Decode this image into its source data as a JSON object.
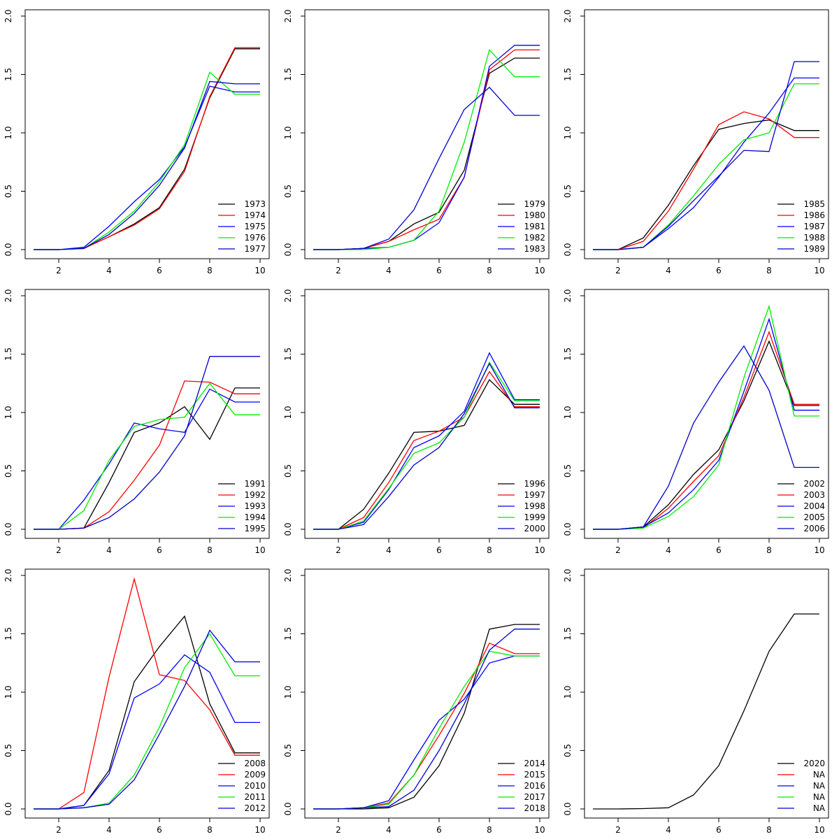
{
  "chart_data": [
    {
      "type": "line",
      "x": [
        1,
        2,
        3,
        4,
        5,
        6,
        7,
        8,
        9,
        10
      ],
      "ylim": [
        0,
        2.0
      ],
      "xlim": [
        1,
        10
      ],
      "x_ticks": [
        "2",
        "4",
        "6",
        "8",
        "10"
      ],
      "y_ticks": [
        "0.0",
        "0.5",
        "1.0",
        "1.5",
        "2.0"
      ],
      "legend_position": "bottom-right",
      "series": [
        {
          "name": "1973",
          "color": "#000000",
          "values": [
            0,
            0,
            0.01,
            0.11,
            0.22,
            0.36,
            0.69,
            1.3,
            1.72,
            1.72
          ]
        },
        {
          "name": "1974",
          "color": "#ff0000",
          "values": [
            0,
            0,
            0.01,
            0.11,
            0.21,
            0.35,
            0.67,
            1.31,
            1.73,
            1.73
          ]
        },
        {
          "name": "1975",
          "color": "#0000ff",
          "values": [
            0,
            0,
            0.02,
            0.2,
            0.41,
            0.6,
            0.88,
            1.4,
            1.35,
            1.35
          ]
        },
        {
          "name": "1976",
          "color": "#00ee00",
          "values": [
            0,
            0,
            0.01,
            0.15,
            0.33,
            0.58,
            0.9,
            1.52,
            1.33,
            1.33
          ]
        },
        {
          "name": "1977",
          "color": "#0000cd",
          "values": [
            0,
            0,
            0.01,
            0.13,
            0.31,
            0.55,
            0.87,
            1.44,
            1.42,
            1.42
          ]
        }
      ]
    },
    {
      "type": "line",
      "x": [
        1,
        2,
        3,
        4,
        5,
        6,
        7,
        8,
        9,
        10
      ],
      "ylim": [
        0,
        2.0
      ],
      "xlim": [
        1,
        10
      ],
      "x_ticks": [
        "2",
        "4",
        "6",
        "8",
        "10"
      ],
      "y_ticks": [
        "0.0",
        "0.5",
        "1.0",
        "1.5",
        "2.0"
      ],
      "legend_position": "bottom-right",
      "series": [
        {
          "name": "1979",
          "color": "#000000",
          "values": [
            0,
            0,
            0.01,
            0.07,
            0.22,
            0.32,
            0.68,
            1.51,
            1.64,
            1.64
          ]
        },
        {
          "name": "1980",
          "color": "#ff0000",
          "values": [
            0,
            0,
            0.01,
            0.07,
            0.17,
            0.26,
            0.62,
            1.54,
            1.71,
            1.71
          ]
        },
        {
          "name": "1981",
          "color": "#0000ff",
          "values": [
            0,
            0,
            0.01,
            0.02,
            0.08,
            0.23,
            0.62,
            1.57,
            1.75,
            1.75
          ]
        },
        {
          "name": "1982",
          "color": "#00ee00",
          "values": [
            0,
            0,
            0.0,
            0.02,
            0.08,
            0.33,
            0.92,
            1.71,
            1.48,
            1.48
          ]
        },
        {
          "name": "1983",
          "color": "#0000cd",
          "values": [
            0,
            0,
            0.01,
            0.09,
            0.34,
            0.78,
            1.2,
            1.39,
            1.15,
            1.15
          ]
        }
      ]
    },
    {
      "type": "line",
      "x": [
        1,
        2,
        3,
        4,
        5,
        6,
        7,
        8,
        9,
        10
      ],
      "ylim": [
        0,
        2.0
      ],
      "xlim": [
        1,
        10
      ],
      "x_ticks": [
        "2",
        "4",
        "6",
        "8",
        "10"
      ],
      "y_ticks": [
        "0.0",
        "0.5",
        "1.0",
        "1.5",
        "2.0"
      ],
      "legend_position": "bottom-right",
      "series": [
        {
          "name": "1985",
          "color": "#000000",
          "values": [
            0,
            0,
            0.1,
            0.38,
            0.72,
            1.03,
            1.08,
            1.11,
            1.02,
            1.02
          ]
        },
        {
          "name": "1986",
          "color": "#ff0000",
          "values": [
            0,
            0,
            0.07,
            0.33,
            0.69,
            1.07,
            1.18,
            1.12,
            0.96,
            0.96
          ]
        },
        {
          "name": "1987",
          "color": "#0000ff",
          "values": [
            0,
            0,
            0.02,
            0.18,
            0.36,
            0.62,
            0.92,
            1.17,
            1.47,
            1.47
          ]
        },
        {
          "name": "1988",
          "color": "#00ee00",
          "values": [
            0,
            0,
            0.02,
            0.21,
            0.46,
            0.73,
            0.94,
            1.0,
            1.42,
            1.42
          ]
        },
        {
          "name": "1989",
          "color": "#0000cd",
          "values": [
            0,
            0,
            0.02,
            0.2,
            0.42,
            0.63,
            0.85,
            0.84,
            1.61,
            1.61
          ]
        }
      ]
    },
    {
      "type": "line",
      "x": [
        1,
        2,
        3,
        4,
        5,
        6,
        7,
        8,
        9,
        10
      ],
      "ylim": [
        0,
        2.0
      ],
      "xlim": [
        1,
        10
      ],
      "x_ticks": [
        "2",
        "4",
        "6",
        "8",
        "10"
      ],
      "y_ticks": [
        "0.0",
        "0.5",
        "1.0",
        "1.5",
        "2.0"
      ],
      "legend_position": "bottom-right",
      "series": [
        {
          "name": "1991",
          "color": "#000000",
          "values": [
            0,
            0,
            0.01,
            0.4,
            0.83,
            0.91,
            1.05,
            0.77,
            1.21,
            1.21
          ]
        },
        {
          "name": "1992",
          "color": "#ff0000",
          "values": [
            0,
            0,
            0.01,
            0.15,
            0.42,
            0.72,
            1.27,
            1.26,
            1.16,
            1.16
          ]
        },
        {
          "name": "1993",
          "color": "#0000ff",
          "values": [
            0,
            0,
            0.25,
            0.56,
            0.91,
            0.86,
            0.83,
            1.2,
            1.09,
            1.09
          ]
        },
        {
          "name": "1994",
          "color": "#00ee00",
          "values": [
            0,
            0,
            0.16,
            0.59,
            0.88,
            0.94,
            0.96,
            1.25,
            0.98,
            0.98
          ]
        },
        {
          "name": "1995",
          "color": "#0000cd",
          "values": [
            0,
            0,
            0.01,
            0.1,
            0.26,
            0.49,
            0.8,
            1.48,
            1.48,
            1.48
          ]
        }
      ]
    },
    {
      "type": "line",
      "x": [
        1,
        2,
        3,
        4,
        5,
        6,
        7,
        8,
        9,
        10
      ],
      "ylim": [
        0,
        2.0
      ],
      "xlim": [
        1,
        10
      ],
      "x_ticks": [
        "2",
        "4",
        "6",
        "8",
        "10"
      ],
      "y_ticks": [
        "0.0",
        "0.5",
        "1.0",
        "1.5",
        "2.0"
      ],
      "legend_position": "bottom-right",
      "series": [
        {
          "name": "1996",
          "color": "#000000",
          "values": [
            0,
            0,
            0.17,
            0.48,
            0.83,
            0.84,
            0.89,
            1.28,
            1.07,
            1.07
          ]
        },
        {
          "name": "1997",
          "color": "#ff0000",
          "values": [
            0,
            0,
            0.1,
            0.4,
            0.76,
            0.84,
            0.96,
            1.35,
            1.05,
            1.05
          ]
        },
        {
          "name": "1998",
          "color": "#0000ff",
          "values": [
            0,
            0,
            0.06,
            0.34,
            0.7,
            0.8,
            1.01,
            1.51,
            1.11,
            1.11
          ]
        },
        {
          "name": "1999",
          "color": "#00ee00",
          "values": [
            0,
            0,
            0.07,
            0.35,
            0.65,
            0.74,
            0.96,
            1.43,
            1.1,
            1.1
          ]
        },
        {
          "name": "2000",
          "color": "#0000cd",
          "values": [
            0,
            0,
            0.04,
            0.28,
            0.55,
            0.7,
            0.99,
            1.42,
            1.04,
            1.04
          ]
        }
      ]
    },
    {
      "type": "line",
      "x": [
        1,
        2,
        3,
        4,
        5,
        6,
        7,
        8,
        9,
        10
      ],
      "ylim": [
        0,
        2.0
      ],
      "xlim": [
        1,
        10
      ],
      "x_ticks": [
        "2",
        "4",
        "6",
        "8",
        "10"
      ],
      "y_ticks": [
        "0.0",
        "0.5",
        "1.0",
        "1.5",
        "2.0"
      ],
      "legend_position": "bottom-right",
      "series": [
        {
          "name": "2002",
          "color": "#000000",
          "values": [
            0,
            0,
            0.02,
            0.21,
            0.47,
            0.68,
            1.1,
            1.61,
            1.06,
            1.06
          ]
        },
        {
          "name": "2003",
          "color": "#ff0000",
          "values": [
            0,
            0,
            0.01,
            0.18,
            0.41,
            0.63,
            1.13,
            1.69,
            1.07,
            1.07
          ]
        },
        {
          "name": "2004",
          "color": "#0000ff",
          "values": [
            0,
            0,
            0.02,
            0.14,
            0.34,
            0.59,
            1.18,
            1.8,
            1.02,
            1.02
          ]
        },
        {
          "name": "2005",
          "color": "#00ee00",
          "values": [
            0,
            0,
            0.01,
            0.11,
            0.28,
            0.55,
            1.3,
            1.91,
            0.97,
            0.97
          ]
        },
        {
          "name": "2006",
          "color": "#0000cd",
          "values": [
            0,
            0,
            0.02,
            0.37,
            0.91,
            1.26,
            1.57,
            1.19,
            0.53,
            0.53
          ]
        }
      ]
    },
    {
      "type": "line",
      "x": [
        1,
        2,
        3,
        4,
        5,
        6,
        7,
        8,
        9,
        10
      ],
      "ylim": [
        0,
        2.0
      ],
      "xlim": [
        1,
        10
      ],
      "x_ticks": [
        "2",
        "4",
        "6",
        "8",
        "10"
      ],
      "y_ticks": [
        "0.0",
        "0.5",
        "1.0",
        "1.5",
        "2.0"
      ],
      "legend_position": "bottom-right",
      "series": [
        {
          "name": "2008",
          "color": "#000000",
          "values": [
            0,
            0,
            0.03,
            0.33,
            1.09,
            1.39,
            1.65,
            0.9,
            0.48,
            0.48
          ]
        },
        {
          "name": "2009",
          "color": "#ff0000",
          "values": [
            0,
            0,
            0.14,
            1.13,
            1.97,
            1.15,
            1.1,
            0.85,
            0.46,
            0.46
          ]
        },
        {
          "name": "2010",
          "color": "#0000ff",
          "values": [
            0,
            0,
            0.03,
            0.3,
            0.95,
            1.07,
            1.32,
            1.17,
            0.74,
            0.74
          ]
        },
        {
          "name": "2011",
          "color": "#00ee00",
          "values": [
            0,
            0,
            0.01,
            0.05,
            0.29,
            0.7,
            1.21,
            1.5,
            1.14,
            1.14
          ]
        },
        {
          "name": "2012",
          "color": "#0000cd",
          "values": [
            0,
            0,
            0.01,
            0.04,
            0.25,
            0.64,
            1.05,
            1.53,
            1.26,
            1.26
          ]
        }
      ]
    },
    {
      "type": "line",
      "x": [
        1,
        2,
        3,
        4,
        5,
        6,
        7,
        8,
        9,
        10
      ],
      "ylim": [
        0,
        2.0
      ],
      "xlim": [
        1,
        10
      ],
      "x_ticks": [
        "2",
        "4",
        "6",
        "8",
        "10"
      ],
      "y_ticks": [
        "0.0",
        "0.5",
        "1.0",
        "1.5",
        "2.0"
      ],
      "legend_position": "bottom-right",
      "series": [
        {
          "name": "2014",
          "color": "#000000",
          "values": [
            0,
            0,
            0.0,
            0.01,
            0.1,
            0.37,
            0.82,
            1.54,
            1.58,
            1.58
          ]
        },
        {
          "name": "2015",
          "color": "#ff0000",
          "values": [
            0,
            0,
            0.01,
            0.05,
            0.29,
            0.63,
            0.99,
            1.42,
            1.33,
            1.33
          ]
        },
        {
          "name": "2016",
          "color": "#0000ff",
          "values": [
            0,
            0,
            0.01,
            0.07,
            0.42,
            0.76,
            0.94,
            1.25,
            1.31,
            1.31
          ]
        },
        {
          "name": "2017",
          "color": "#00ee00",
          "values": [
            0,
            0,
            0.01,
            0.04,
            0.29,
            0.69,
            1.05,
            1.35,
            1.31,
            1.31
          ]
        },
        {
          "name": "2018",
          "color": "#0000cd",
          "values": [
            0,
            0,
            0.01,
            0.02,
            0.16,
            0.5,
            0.9,
            1.36,
            1.54,
            1.54
          ]
        }
      ]
    },
    {
      "type": "line",
      "x": [
        1,
        2,
        3,
        4,
        5,
        6,
        7,
        8,
        9,
        10
      ],
      "ylim": [
        0,
        2.0
      ],
      "xlim": [
        1,
        10
      ],
      "x_ticks": [
        "2",
        "4",
        "6",
        "8",
        "10"
      ],
      "y_ticks": [
        "0.0",
        "0.5",
        "1.0",
        "1.5",
        "2.0"
      ],
      "legend_position": "bottom-right",
      "series": [
        {
          "name": "2020",
          "color": "#000000",
          "values": [
            0,
            0,
            0.003,
            0.01,
            0.12,
            0.37,
            0.84,
            1.35,
            1.67,
            1.67
          ]
        },
        {
          "name": "NA",
          "color": "#ff0000",
          "values": []
        },
        {
          "name": "NA",
          "color": "#0000ff",
          "values": []
        },
        {
          "name": "NA",
          "color": "#00ee00",
          "values": []
        },
        {
          "name": "NA",
          "color": "#0000cd",
          "values": []
        }
      ]
    }
  ]
}
